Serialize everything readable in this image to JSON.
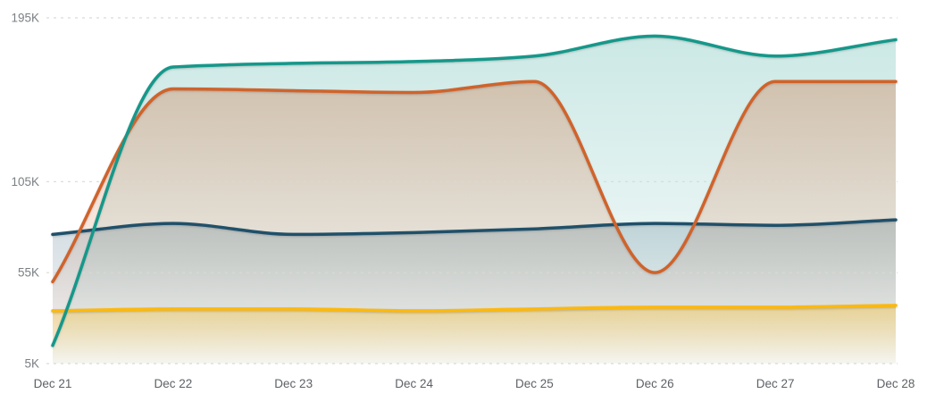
{
  "chart_data": {
    "type": "area",
    "title": "",
    "legend_position": "none",
    "unit": "K",
    "x_tick_labels": [
      "Dec 21",
      "Dec 22",
      "Dec 23",
      "Dec 24",
      "Dec 25",
      "Dec 26",
      "Dec 27",
      "Dec 28"
    ],
    "y_tick_labels": [
      "195K",
      "105K",
      "55K",
      "5K"
    ],
    "yticks_k": [
      195,
      105,
      55,
      5
    ],
    "ylim": [
      5,
      195
    ],
    "grid": "horizontal-dashed",
    "series": [
      {
        "name": "teal-series",
        "color": "#15988a",
        "fill_top_opacity": 0.22,
        "values_k": [
          15,
          168,
          170,
          171,
          174,
          185,
          174,
          183
        ]
      },
      {
        "name": "orange-series",
        "color": "#d0632b",
        "fill_top_opacity": 0.3,
        "values_k": [
          50,
          156,
          155,
          154,
          160,
          55,
          160,
          160
        ]
      },
      {
        "name": "navy-series",
        "color": "#20506a",
        "fill_top_opacity": 0.2,
        "values_k": [
          76,
          82,
          76,
          77,
          79,
          82,
          81,
          84
        ]
      },
      {
        "name": "yellow-series",
        "color": "#fdb80a",
        "fill_top_opacity": 0.34,
        "values_k": [
          34,
          35,
          35,
          34,
          35,
          36,
          36,
          37
        ]
      }
    ],
    "colors": {
      "background": "#ffffff",
      "grid": "#d9d9d3",
      "y_label": "#7b8084",
      "x_label": "#5d6266"
    }
  }
}
